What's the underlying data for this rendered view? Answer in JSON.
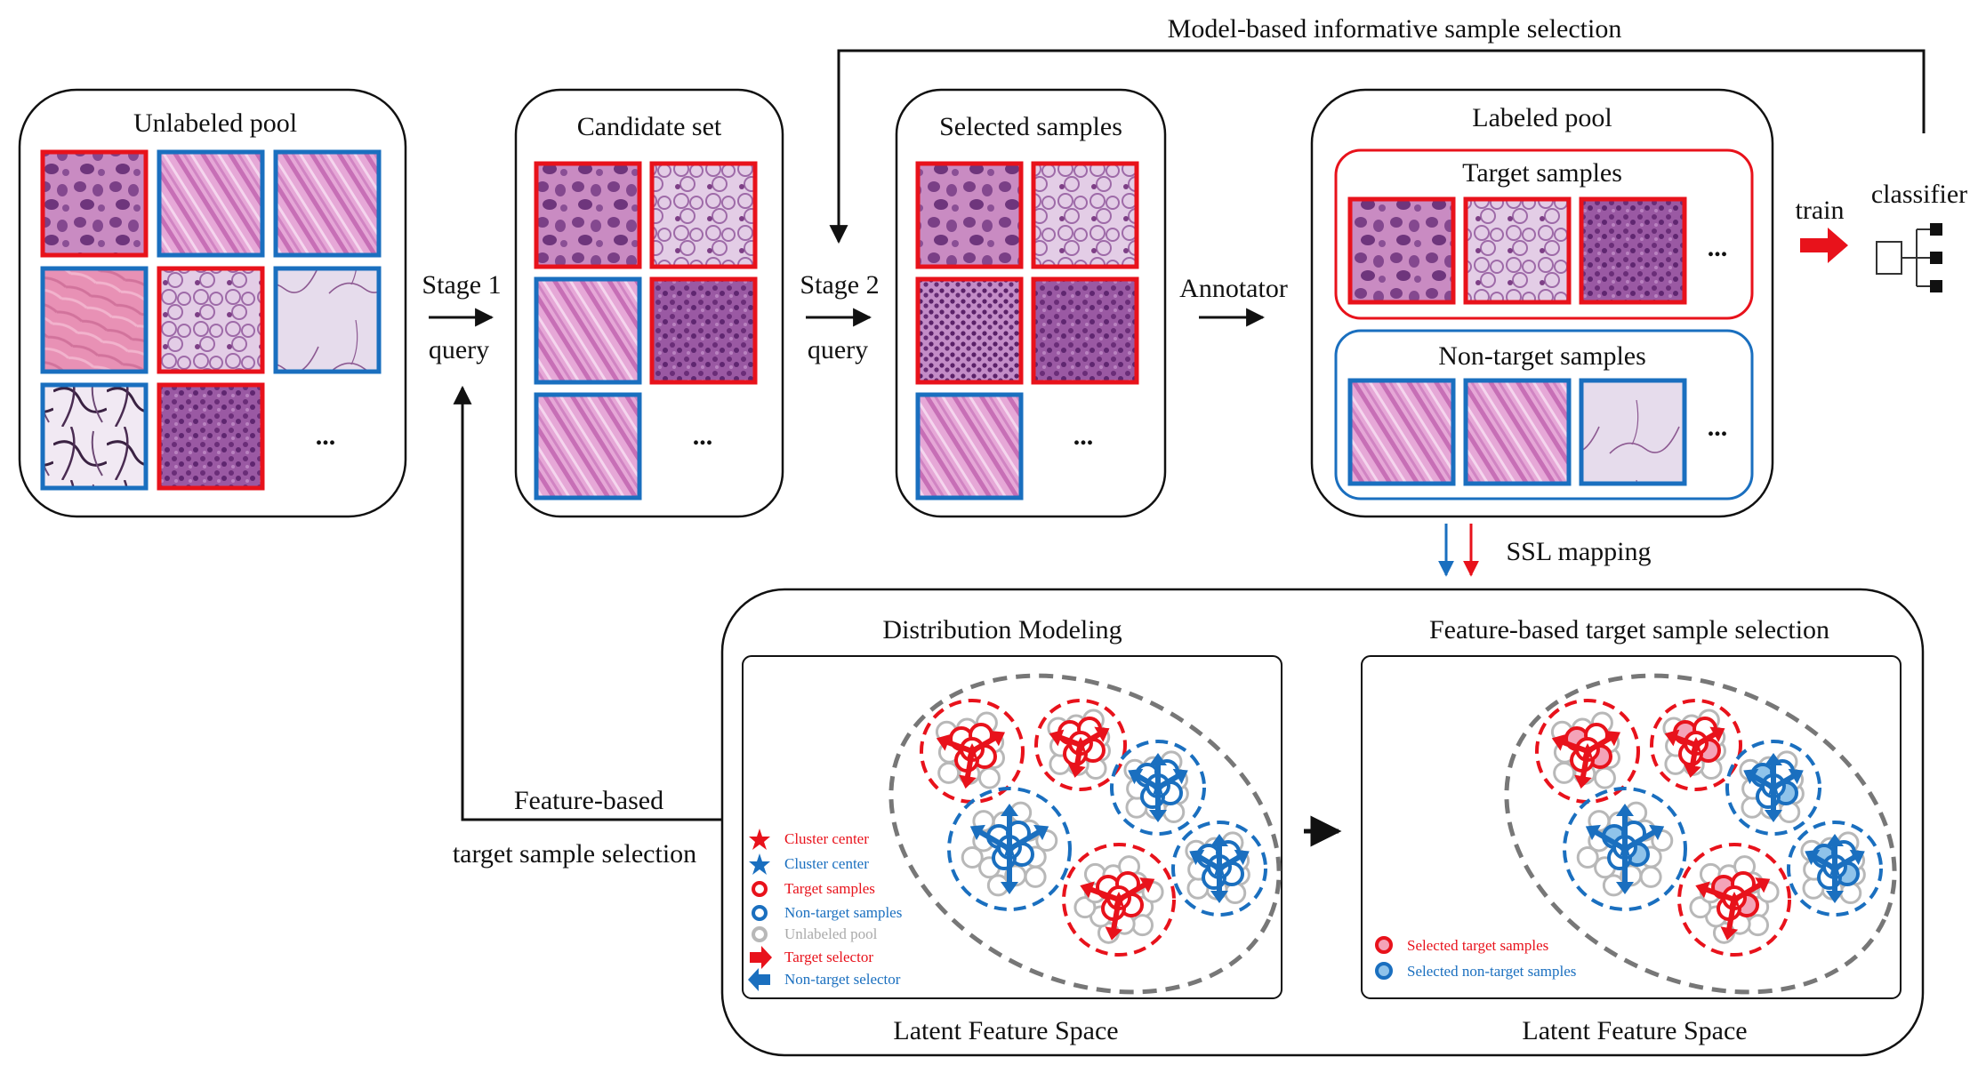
{
  "top_loop_label": "Model-based informative sample selection",
  "stage1": {
    "title": "Stage 1",
    "sub": "query"
  },
  "stage2": {
    "title": "Stage 2",
    "sub": "query"
  },
  "annotator": "Annotator",
  "train": "train",
  "classifier": "classifier",
  "ellipsis": "...",
  "ssl_mapping": "SSL mapping",
  "feedback_label": {
    "line1": "Feature-based",
    "line2": "target sample selection"
  },
  "pools": {
    "unlabeled": {
      "title": "Unlabeled pool",
      "tiles": [
        {
          "type": "target",
          "tissue": "nuclei"
        },
        {
          "type": "non-target",
          "tissue": "fibers"
        },
        {
          "type": "non-target",
          "tissue": "fibers"
        },
        {
          "type": "non-target",
          "tissue": "stroma"
        },
        {
          "type": "target",
          "tissue": "glandular"
        },
        {
          "type": "non-target",
          "tissue": "fat"
        },
        {
          "type": "non-target",
          "tissue": "fat-dark"
        },
        {
          "type": "target",
          "tissue": "tumor"
        }
      ]
    },
    "candidate": {
      "title": "Candidate set",
      "tiles": [
        {
          "type": "target",
          "tissue": "nuclei"
        },
        {
          "type": "target",
          "tissue": "glandular"
        },
        {
          "type": "non-target",
          "tissue": "fibers"
        },
        {
          "type": "target",
          "tissue": "tumor"
        },
        {
          "type": "non-target",
          "tissue": "fibers"
        }
      ]
    },
    "selected": {
      "title": "Selected samples",
      "tiles": [
        {
          "type": "target",
          "tissue": "nuclei"
        },
        {
          "type": "target",
          "tissue": "glandular"
        },
        {
          "type": "target",
          "tissue": "lymph"
        },
        {
          "type": "target",
          "tissue": "tumor"
        },
        {
          "type": "non-target",
          "tissue": "fibers"
        }
      ]
    },
    "labeled": {
      "title": "Labeled pool",
      "target_title": "Target samples",
      "nontarget_title": "Non-target samples",
      "target_tiles": [
        {
          "type": "target",
          "tissue": "nuclei"
        },
        {
          "type": "target",
          "tissue": "glandular"
        },
        {
          "type": "target",
          "tissue": "tumor"
        }
      ],
      "nontarget_tiles": [
        {
          "type": "non-target",
          "tissue": "fibers"
        },
        {
          "type": "non-target",
          "tissue": "fibers"
        },
        {
          "type": "non-target",
          "tissue": "fat"
        }
      ]
    }
  },
  "bottom": {
    "left_title": "Distribution Modeling",
    "right_title": "Feature-based target sample selection",
    "left_caption": "Latent Feature Space",
    "right_caption": "Latent Feature Space",
    "legend_left": [
      {
        "marker": "star",
        "color": "red",
        "label": "Cluster center"
      },
      {
        "marker": "star",
        "color": "blue",
        "label": "Cluster center"
      },
      {
        "marker": "ring",
        "color": "red",
        "label": "Target samples"
      },
      {
        "marker": "ring",
        "color": "blue",
        "label": "Non-target samples"
      },
      {
        "marker": "ring",
        "color": "gray",
        "label": "Unlabeled pool"
      },
      {
        "marker": "arrow-right",
        "color": "red",
        "label": "Target selector"
      },
      {
        "marker": "arrow-left",
        "color": "blue",
        "label": "Non-target selector"
      }
    ],
    "legend_right": [
      {
        "marker": "filled-ring",
        "color": "red",
        "label": "Selected target samples"
      },
      {
        "marker": "filled-ring",
        "color": "blue",
        "label": "Selected non-target samples"
      }
    ]
  },
  "colors": {
    "target": "#e8121b",
    "non_target": "#1a6fbf",
    "unlabeled": "#b8b8b8",
    "line": "#111111",
    "dashed_outline": "#777777"
  }
}
